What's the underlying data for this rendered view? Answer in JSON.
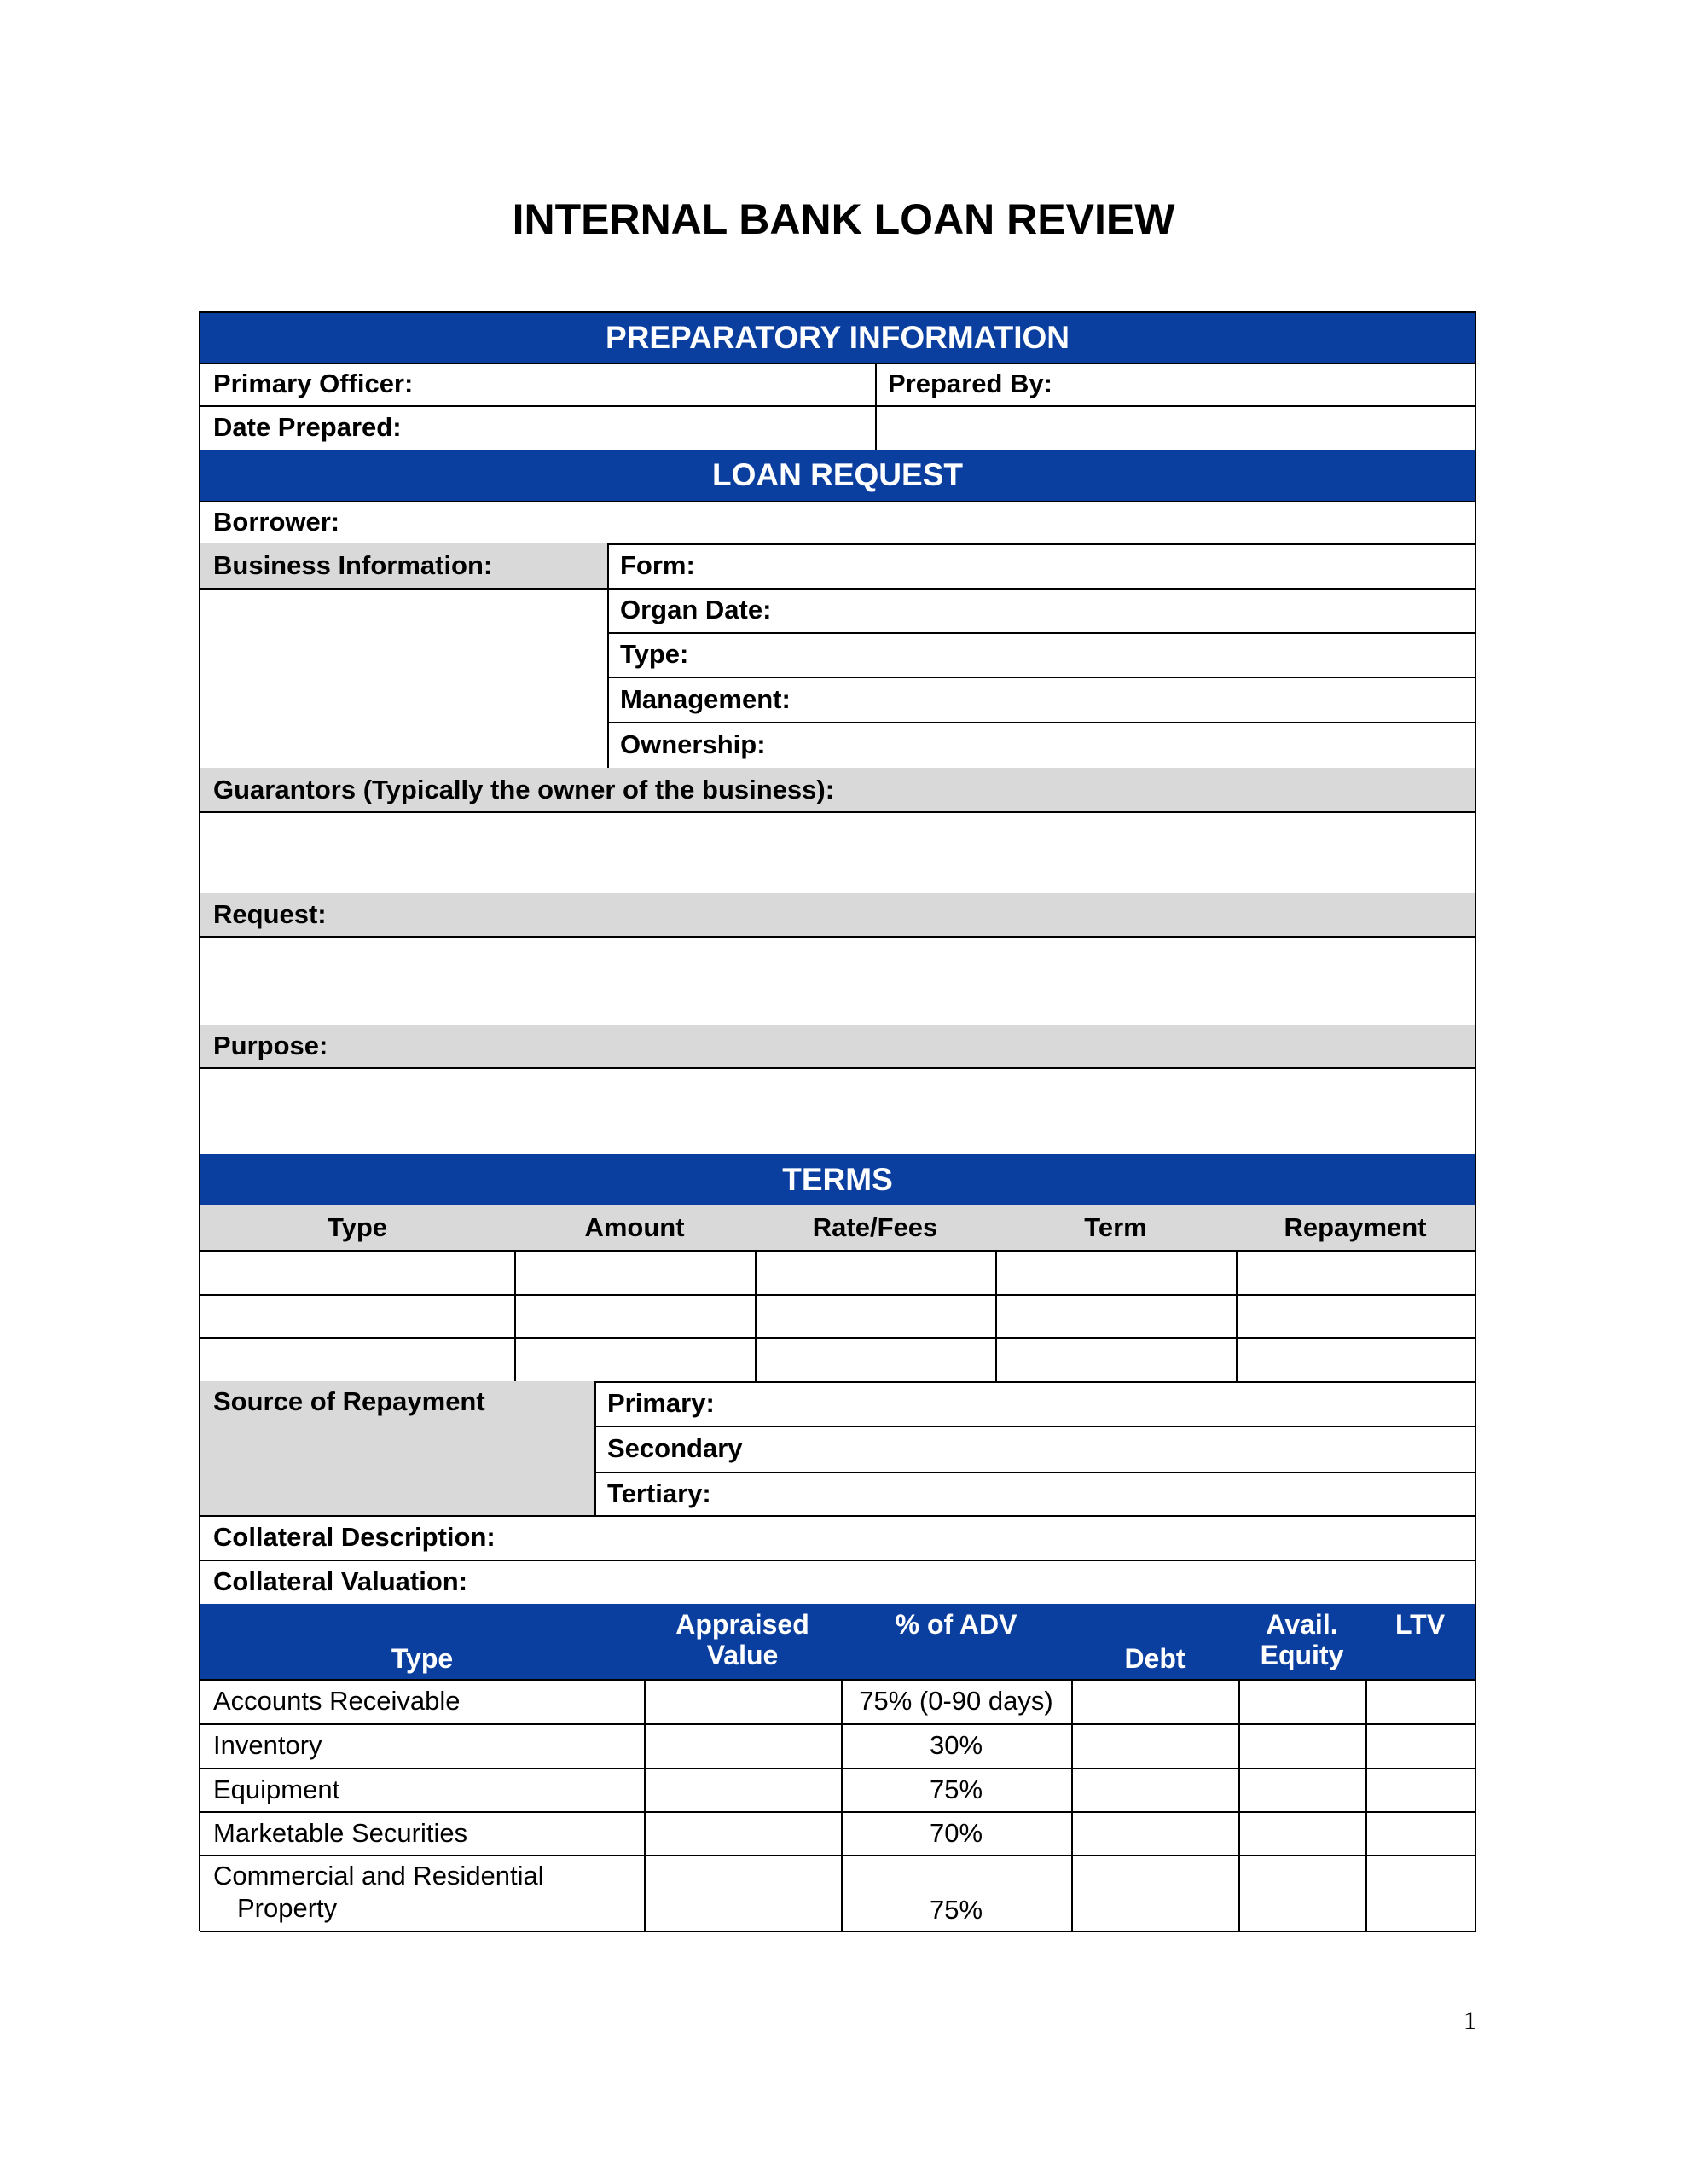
{
  "title": "INTERNAL BANK LOAN REVIEW",
  "prep": {
    "header": "PREPARATORY INFORMATION",
    "primary_officer": "Primary Officer:",
    "prepared_by": "Prepared By:",
    "date_prepared": "Date Prepared:"
  },
  "loan": {
    "header": "LOAN REQUEST",
    "borrower": "Borrower:",
    "business_info": "Business Information:",
    "form": "Form:",
    "organ_date": "Organ Date:",
    "type": "Type:",
    "management": "Management:",
    "ownership": "Ownership:",
    "guarantors": "Guarantors (Typically the owner of the business):",
    "request": "Request:",
    "purpose": "Purpose:"
  },
  "terms": {
    "header": "TERMS",
    "columns": [
      "Type",
      "Amount",
      "Rate/Fees",
      "Term",
      "Repayment"
    ],
    "source": "Source of Repayment",
    "primary": "Primary:",
    "secondary": "Secondary",
    "tertiary": "Tertiary:",
    "collateral_description": "Collateral Description:",
    "collateral_valuation": "Collateral Valuation:"
  },
  "collateral": {
    "columns": [
      "Type",
      "Appraised Value",
      "% of ADV",
      "Debt",
      "Avail. Equity",
      "LTV"
    ],
    "rows": [
      {
        "type": "Accounts Receivable",
        "pct": "75% (0-90 days)"
      },
      {
        "type": "Inventory",
        "pct": "30%"
      },
      {
        "type": "Equipment",
        "pct": "75%"
      },
      {
        "type": "Marketable Securities",
        "pct": "70%"
      },
      {
        "type_line1": "Commercial and Residential",
        "type_line2": "Property",
        "pct": "75%"
      }
    ]
  },
  "page_number": "1",
  "colors": {
    "header_blue": "#0a3fa0",
    "label_gray": "#d9d9d9"
  }
}
